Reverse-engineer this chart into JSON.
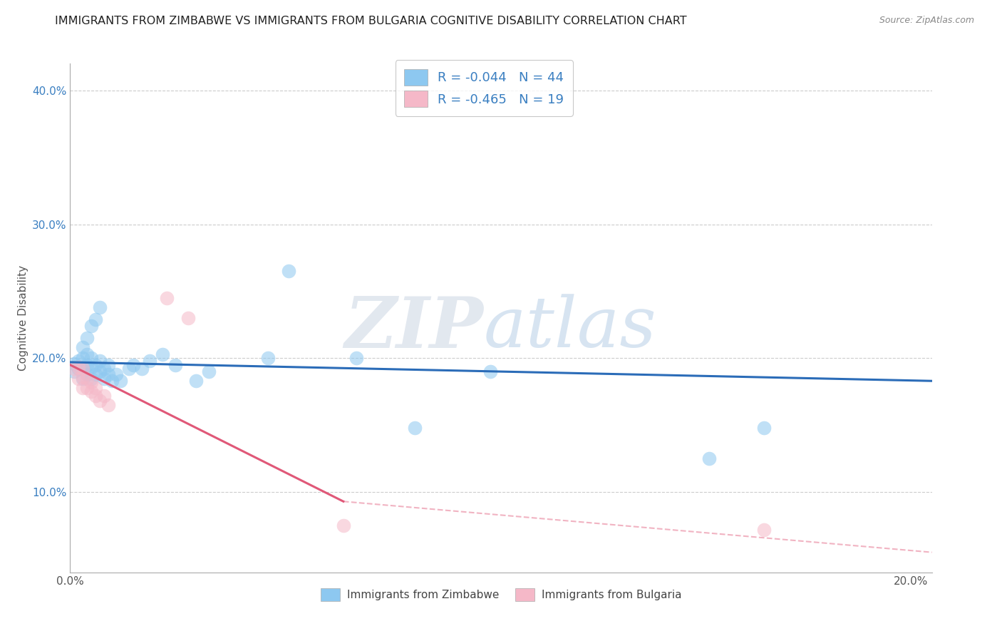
{
  "title": "IMMIGRANTS FROM ZIMBABWE VS IMMIGRANTS FROM BULGARIA COGNITIVE DISABILITY CORRELATION CHART",
  "source": "Source: ZipAtlas.com",
  "ylabel": "Cognitive Disability",
  "xlim": [
    0.0,
    0.205
  ],
  "ylim": [
    0.04,
    0.42
  ],
  "xticks": [
    0.0,
    0.05,
    0.1,
    0.15,
    0.2
  ],
  "yticks": [
    0.1,
    0.2,
    0.3,
    0.4
  ],
  "xticklabels": [
    "0.0%",
    "",
    "",
    "",
    "20.0%"
  ],
  "yticklabels": [
    "10.0%",
    "20.0%",
    "30.0%",
    "40.0%"
  ],
  "color_zimbabwe": "#8DC8F0",
  "color_bulgaria": "#F5B8C8",
  "color_line_zimbabwe": "#2B6CB8",
  "color_line_bulgaria": "#E05878",
  "watermark_zip": "ZIP",
  "watermark_atlas": "atlas",
  "zimbabwe_points": [
    [
      0.001,
      0.19
    ],
    [
      0.001,
      0.196
    ],
    [
      0.002,
      0.192
    ],
    [
      0.002,
      0.198
    ],
    [
      0.003,
      0.185
    ],
    [
      0.003,
      0.192
    ],
    [
      0.003,
      0.2
    ],
    [
      0.003,
      0.208
    ],
    [
      0.004,
      0.188
    ],
    [
      0.004,
      0.195
    ],
    [
      0.004,
      0.203
    ],
    [
      0.004,
      0.215
    ],
    [
      0.005,
      0.185
    ],
    [
      0.005,
      0.193
    ],
    [
      0.005,
      0.2
    ],
    [
      0.005,
      0.224
    ],
    [
      0.006,
      0.188
    ],
    [
      0.006,
      0.195
    ],
    [
      0.006,
      0.229
    ],
    [
      0.007,
      0.19
    ],
    [
      0.007,
      0.198
    ],
    [
      0.007,
      0.238
    ],
    [
      0.008,
      0.185
    ],
    [
      0.008,
      0.192
    ],
    [
      0.009,
      0.188
    ],
    [
      0.009,
      0.195
    ],
    [
      0.01,
      0.183
    ],
    [
      0.011,
      0.188
    ],
    [
      0.012,
      0.183
    ],
    [
      0.014,
      0.192
    ],
    [
      0.015,
      0.195
    ],
    [
      0.017,
      0.192
    ],
    [
      0.019,
      0.198
    ],
    [
      0.022,
      0.203
    ],
    [
      0.025,
      0.195
    ],
    [
      0.03,
      0.183
    ],
    [
      0.033,
      0.19
    ],
    [
      0.047,
      0.2
    ],
    [
      0.052,
      0.265
    ],
    [
      0.068,
      0.2
    ],
    [
      0.082,
      0.148
    ],
    [
      0.1,
      0.19
    ],
    [
      0.152,
      0.125
    ],
    [
      0.165,
      0.148
    ]
  ],
  "bulgaria_points": [
    [
      0.001,
      0.192
    ],
    [
      0.002,
      0.185
    ],
    [
      0.002,
      0.193
    ],
    [
      0.003,
      0.178
    ],
    [
      0.003,
      0.186
    ],
    [
      0.003,
      0.192
    ],
    [
      0.004,
      0.178
    ],
    [
      0.004,
      0.185
    ],
    [
      0.005,
      0.175
    ],
    [
      0.005,
      0.182
    ],
    [
      0.006,
      0.172
    ],
    [
      0.006,
      0.178
    ],
    [
      0.007,
      0.168
    ],
    [
      0.008,
      0.172
    ],
    [
      0.009,
      0.165
    ],
    [
      0.023,
      0.245
    ],
    [
      0.028,
      0.23
    ],
    [
      0.065,
      0.075
    ],
    [
      0.165,
      0.072
    ]
  ],
  "zim_trendline": [
    [
      0.0,
      0.197
    ],
    [
      0.205,
      0.183
    ]
  ],
  "bul_trendline_solid": [
    [
      0.0,
      0.195
    ],
    [
      0.065,
      0.093
    ]
  ],
  "bul_trendline_dashed": [
    [
      0.065,
      0.093
    ],
    [
      0.205,
      0.055
    ]
  ],
  "title_fontsize": 11.5,
  "axis_label_fontsize": 11,
  "tick_fontsize": 11
}
